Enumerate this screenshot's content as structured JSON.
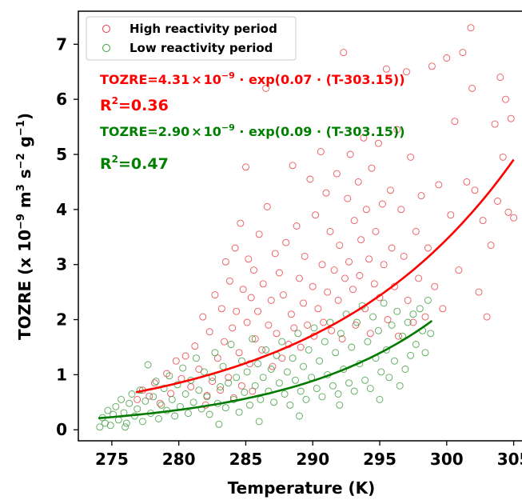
{
  "chart_data": {
    "type": "scatter",
    "xlabel": "Temperature (K)",
    "ylabel_parts": [
      "TOZRE (x 10",
      "−9",
      " m",
      "3",
      " s",
      "−2",
      " g",
      "−1",
      ")"
    ],
    "xlim": [
      272.5,
      305.8
    ],
    "ylim": [
      -0.2,
      7.6
    ],
    "xticks": [
      275,
      280,
      285,
      290,
      295,
      300,
      305
    ],
    "yticks": [
      0,
      1,
      2,
      3,
      4,
      5,
      6,
      7
    ],
    "legend": {
      "position": "top-left",
      "entries": [
        {
          "label": "High reactivity period",
          "color": "#e8393f",
          "marker": "open-circle"
        },
        {
          "label": "Low reactivity period",
          "color": "#3a9a3a",
          "marker": "open-circle"
        }
      ]
    },
    "annotations": [
      {
        "color": "#ff0000",
        "eq_prefix": "TOZRE=4.31",
        "times": "×",
        "base": "10",
        "exp": "−9",
        "eq_suffix": " · exp(0.07 · (T-303.15))",
        "r2_label": "R",
        "r2_sup": "2",
        "r2_value": "=0.36"
      },
      {
        "color": "#008000",
        "eq_prefix": "TOZRE=2.90",
        "times": "×",
        "base": "10",
        "exp": "−9",
        "eq_suffix": " · exp(0.09 · (T-303.15))",
        "r2_label": "R",
        "r2_sup": "2",
        "r2_value": "=0.47"
      }
    ],
    "series": [
      {
        "name": "High reactivity period",
        "color": "#e8393f",
        "fit": {
          "a": 4.31,
          "b": 0.07,
          "T0": 303.15,
          "x_range": [
            276.8,
            305.0
          ],
          "color": "#ff0000"
        },
        "points": [
          [
            276.9,
            0.55
          ],
          [
            277.3,
            0.72
          ],
          [
            277.8,
            0.61
          ],
          [
            278.2,
            0.85
          ],
          [
            278.6,
            0.48
          ],
          [
            279.1,
            1.02
          ],
          [
            279.4,
            0.66
          ],
          [
            279.8,
            1.25
          ],
          [
            280.2,
            0.93
          ],
          [
            280.5,
            1.34
          ],
          [
            280.9,
            0.78
          ],
          [
            281.2,
            1.52
          ],
          [
            281.5,
            1.1
          ],
          [
            281.8,
            2.05
          ],
          [
            282.0,
            0.45
          ],
          [
            282.1,
            0.62
          ],
          [
            282.3,
            1.78
          ],
          [
            282.5,
            0.88
          ],
          [
            282.7,
            2.45
          ],
          [
            282.9,
            1.3
          ],
          [
            283.1,
            0.72
          ],
          [
            283.2,
            2.2
          ],
          [
            283.4,
            1.6
          ],
          [
            283.5,
            3.05
          ],
          [
            283.7,
            0.95
          ],
          [
            283.8,
            2.7
          ],
          [
            284.0,
            1.85
          ],
          [
            284.1,
            0.58
          ],
          [
            284.2,
            3.3
          ],
          [
            284.3,
            2.15
          ],
          [
            284.5,
            1.4
          ],
          [
            284.6,
            3.75
          ],
          [
            284.7,
            0.8
          ],
          [
            284.8,
            2.55
          ],
          [
            285.0,
            4.77
          ],
          [
            285.1,
            1.95
          ],
          [
            285.2,
            3.1
          ],
          [
            285.3,
            1.2
          ],
          [
            285.4,
            2.4
          ],
          [
            285.5,
            0.7
          ],
          [
            285.6,
            2.9
          ],
          [
            285.7,
            1.65
          ],
          [
            285.9,
            2.15
          ],
          [
            286.0,
            3.55
          ],
          [
            286.2,
            1.45
          ],
          [
            286.3,
            2.65
          ],
          [
            286.5,
            6.2
          ],
          [
            286.6,
            4.05
          ],
          [
            286.7,
            1.9
          ],
          [
            286.9,
            2.35
          ],
          [
            287.0,
            1.15
          ],
          [
            287.2,
            3.2
          ],
          [
            287.3,
            1.75
          ],
          [
            287.5,
            2.85
          ],
          [
            287.7,
            1.3
          ],
          [
            287.8,
            2.45
          ],
          [
            288.0,
            3.4
          ],
          [
            288.2,
            1.55
          ],
          [
            288.4,
            2.1
          ],
          [
            288.5,
            4.8
          ],
          [
            288.6,
            1.85
          ],
          [
            288.8,
            3.7
          ],
          [
            289.0,
            2.75
          ],
          [
            289.1,
            1.5
          ],
          [
            289.3,
            2.3
          ],
          [
            289.4,
            3.15
          ],
          [
            289.6,
            1.9
          ],
          [
            289.8,
            4.55
          ],
          [
            290.0,
            2.6
          ],
          [
            290.1,
            1.7
          ],
          [
            290.2,
            3.9
          ],
          [
            290.4,
            2.2
          ],
          [
            290.6,
            5.05
          ],
          [
            290.7,
            3.0
          ],
          [
            290.8,
            1.95
          ],
          [
            291.0,
            4.3
          ],
          [
            291.1,
            2.5
          ],
          [
            291.3,
            3.6
          ],
          [
            291.4,
            1.8
          ],
          [
            291.6,
            2.9
          ],
          [
            291.8,
            4.65
          ],
          [
            291.9,
            2.35
          ],
          [
            292.0,
            3.35
          ],
          [
            292.2,
            1.65
          ],
          [
            292.3,
            6.85
          ],
          [
            292.4,
            2.75
          ],
          [
            292.6,
            4.2
          ],
          [
            292.7,
            3.05
          ],
          [
            292.8,
            5.0
          ],
          [
            293.0,
            2.55
          ],
          [
            293.1,
            3.8
          ],
          [
            293.2,
            1.9
          ],
          [
            293.4,
            4.5
          ],
          [
            293.5,
            2.8
          ],
          [
            293.6,
            3.45
          ],
          [
            293.8,
            5.3
          ],
          [
            293.9,
            2.2
          ],
          [
            294.0,
            4.0
          ],
          [
            294.2,
            3.1
          ],
          [
            294.3,
            1.75
          ],
          [
            294.4,
            4.75
          ],
          [
            294.6,
            2.65
          ],
          [
            294.7,
            3.6
          ],
          [
            294.9,
            5.2
          ],
          [
            295.0,
            2.4
          ],
          [
            295.2,
            4.1
          ],
          [
            295.3,
            3.0
          ],
          [
            295.5,
            6.55
          ],
          [
            295.6,
            2.0
          ],
          [
            295.8,
            4.35
          ],
          [
            295.9,
            3.3
          ],
          [
            296.1,
            2.6
          ],
          [
            296.3,
            5.45
          ],
          [
            296.4,
            1.7
          ],
          [
            296.6,
            4.0
          ],
          [
            296.8,
            3.15
          ],
          [
            297.0,
            6.5
          ],
          [
            297.1,
            2.35
          ],
          [
            297.3,
            4.95
          ],
          [
            297.5,
            1.95
          ],
          [
            297.7,
            3.6
          ],
          [
            297.9,
            2.75
          ],
          [
            298.1,
            4.25
          ],
          [
            298.4,
            2.05
          ],
          [
            298.6,
            3.3
          ],
          [
            298.9,
            6.6
          ],
          [
            299.1,
            2.6
          ],
          [
            299.4,
            4.45
          ],
          [
            299.7,
            2.2
          ],
          [
            300.0,
            6.75
          ],
          [
            300.3,
            3.9
          ],
          [
            300.6,
            5.6
          ],
          [
            300.9,
            2.9
          ],
          [
            301.2,
            6.85
          ],
          [
            301.5,
            4.5
          ],
          [
            301.8,
            7.3
          ],
          [
            302.1,
            4.35
          ],
          [
            302.4,
            2.5
          ],
          [
            302.7,
            3.8
          ],
          [
            303.0,
            2.05
          ],
          [
            303.3,
            3.35
          ],
          [
            303.6,
            5.55
          ],
          [
            303.8,
            4.15
          ],
          [
            304.0,
            6.4
          ],
          [
            304.2,
            4.95
          ],
          [
            304.4,
            6.0
          ],
          [
            304.6,
            3.95
          ],
          [
            304.8,
            5.65
          ],
          [
            305.0,
            3.85
          ],
          [
            301.9,
            6.2
          ]
        ]
      },
      {
        "name": "Low reactivity period",
        "color": "#3a9a3a",
        "fit": {
          "a": 2.9,
          "b": 0.09,
          "T0": 303.15,
          "x_range": [
            274.0,
            298.9
          ],
          "color": "#007a00"
        },
        "points": [
          [
            274.1,
            0.05
          ],
          [
            274.3,
            0.22
          ],
          [
            274.5,
            0.12
          ],
          [
            274.7,
            0.35
          ],
          [
            274.9,
            0.08
          ],
          [
            275.1,
            0.28
          ],
          [
            275.3,
            0.42
          ],
          [
            275.5,
            0.18
          ],
          [
            275.7,
            0.55
          ],
          [
            275.9,
            0.31
          ],
          [
            276.1,
            0.12
          ],
          [
            276.3,
            0.48
          ],
          [
            276.5,
            0.65
          ],
          [
            276.7,
            0.25
          ],
          [
            276.9,
            0.38
          ],
          [
            277.1,
            0.72
          ],
          [
            277.3,
            0.15
          ],
          [
            277.5,
            0.52
          ],
          [
            277.7,
            1.18
          ],
          [
            277.9,
            0.3
          ],
          [
            278.1,
            0.6
          ],
          [
            278.3,
            0.88
          ],
          [
            278.5,
            0.2
          ],
          [
            278.7,
            0.45
          ],
          [
            278.9,
            0.75
          ],
          [
            279.1,
            0.35
          ],
          [
            279.3,
            0.98
          ],
          [
            279.5,
            0.55
          ],
          [
            279.7,
            0.25
          ],
          [
            279.9,
            0.82
          ],
          [
            280.1,
            0.42
          ],
          [
            280.3,
            1.12
          ],
          [
            280.5,
            0.65
          ],
          [
            280.7,
            0.3
          ],
          [
            280.9,
            0.9
          ],
          [
            281.1,
            0.5
          ],
          [
            281.3,
            1.3
          ],
          [
            281.5,
            0.72
          ],
          [
            281.7,
            0.38
          ],
          [
            281.9,
            1.05
          ],
          [
            282.1,
            0.6
          ],
          [
            282.3,
            0.28
          ],
          [
            282.5,
            0.95
          ],
          [
            282.7,
            1.4
          ],
          [
            282.9,
            0.48
          ],
          [
            283.1,
            0.78
          ],
          [
            283.3,
            1.15
          ],
          [
            283.5,
            0.4
          ],
          [
            283.7,
            0.85
          ],
          [
            283.9,
            1.55
          ],
          [
            284.1,
            0.55
          ],
          [
            284.3,
            0.95
          ],
          [
            284.5,
            0.32
          ],
          [
            284.7,
            1.25
          ],
          [
            284.9,
            0.68
          ],
          [
            285.1,
            1.05
          ],
          [
            285.3,
            0.45
          ],
          [
            285.5,
            1.65
          ],
          [
            285.7,
            0.8
          ],
          [
            285.9,
            1.2
          ],
          [
            286.1,
            0.55
          ],
          [
            286.3,
            0.95
          ],
          [
            286.5,
            1.45
          ],
          [
            286.7,
            0.7
          ],
          [
            286.9,
            1.1
          ],
          [
            287.1,
            0.5
          ],
          [
            287.3,
            1.35
          ],
          [
            287.5,
            0.85
          ],
          [
            287.7,
            1.6
          ],
          [
            287.9,
            0.65
          ],
          [
            288.1,
            1.05
          ],
          [
            288.3,
            0.45
          ],
          [
            288.5,
            1.3
          ],
          [
            288.7,
            0.9
          ],
          [
            288.9,
            1.75
          ],
          [
            289.1,
            0.7
          ],
          [
            289.3,
            1.15
          ],
          [
            289.5,
            0.55
          ],
          [
            289.7,
            1.45
          ],
          [
            289.9,
            0.95
          ],
          [
            290.1,
            1.85
          ],
          [
            290.3,
            0.75
          ],
          [
            290.5,
            1.25
          ],
          [
            290.7,
            0.6
          ],
          [
            290.9,
            1.6
          ],
          [
            291.1,
            1.0
          ],
          [
            291.3,
            1.95
          ],
          [
            291.5,
            0.8
          ],
          [
            291.7,
            1.4
          ],
          [
            291.9,
            0.65
          ],
          [
            292.1,
            1.75
          ],
          [
            292.3,
            1.1
          ],
          [
            292.5,
            2.1
          ],
          [
            292.7,
            0.85
          ],
          [
            292.9,
            1.5
          ],
          [
            293.1,
            0.7
          ],
          [
            293.3,
            1.95
          ],
          [
            293.5,
            1.2
          ],
          [
            293.7,
            2.25
          ],
          [
            293.9,
            0.9
          ],
          [
            294.1,
            1.6
          ],
          [
            294.3,
            0.75
          ],
          [
            294.5,
            2.05
          ],
          [
            294.7,
            1.3
          ],
          [
            294.9,
            1.8
          ],
          [
            295.1,
            1.05
          ],
          [
            295.3,
            2.3
          ],
          [
            295.5,
            1.45
          ],
          [
            295.7,
            0.95
          ],
          [
            295.9,
            1.9
          ],
          [
            296.1,
            1.25
          ],
          [
            296.3,
            2.15
          ],
          [
            296.5,
            0.8
          ],
          [
            296.7,
            1.7
          ],
          [
            296.9,
            1.1
          ],
          [
            297.1,
            1.95
          ],
          [
            297.3,
            1.35
          ],
          [
            297.5,
            2.1
          ],
          [
            297.7,
            1.55
          ],
          [
            298.0,
            2.2
          ],
          [
            298.2,
            1.8
          ],
          [
            298.4,
            1.4
          ],
          [
            298.6,
            2.35
          ],
          [
            298.8,
            1.75
          ],
          [
            283.0,
            0.1
          ],
          [
            286.0,
            0.15
          ],
          [
            289.0,
            0.25
          ],
          [
            292.0,
            0.45
          ],
          [
            295.0,
            0.55
          ],
          [
            276.0,
            0.05
          ]
        ]
      }
    ]
  }
}
